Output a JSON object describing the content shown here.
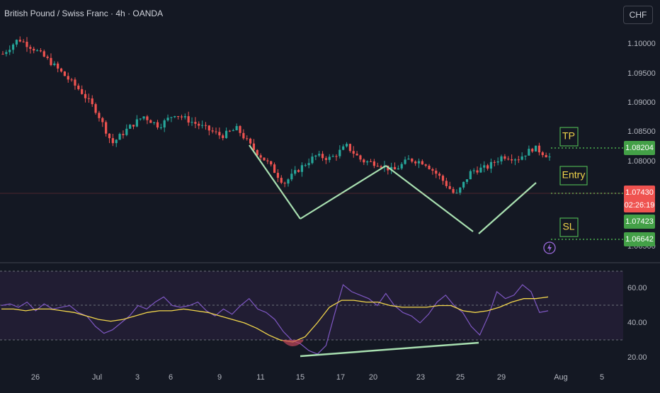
{
  "header": {
    "symbol_title": "British Pound / Swiss Franc · 4h · OANDA",
    "currency_button": "CHF"
  },
  "colors": {
    "background": "#141823",
    "bull_candle": "#26a69a",
    "bear_candle": "#ef5350",
    "pattern_line": "#a8dfb0",
    "level_line": "#4caf50",
    "level_text": "#f2d64b",
    "rsi_line": "#7e57c2",
    "rsi_ma": "#f2d64b",
    "rsi_band": "#2a2540"
  },
  "chart_data": [
    {
      "type": "candlestick",
      "name": "GBPCHF 4h price",
      "y_ticks": [
        "1.10000",
        "1.09500",
        "1.09000",
        "1.08500",
        "1.08000",
        "1.06500"
      ],
      "x_ticks": [
        "26",
        "Jul",
        "3",
        "6",
        "9",
        "11",
        "15",
        "17",
        "20",
        "23",
        "25",
        "29",
        "Aug",
        "5"
      ],
      "price_labels": [
        {
          "text": "1.08204",
          "kind": "tp"
        },
        {
          "text": "1.07430",
          "kind": "last"
        },
        {
          "text": "02:26:19",
          "kind": "countdown"
        },
        {
          "text": "1.07423",
          "kind": "entry"
        },
        {
          "text": "1.06642",
          "kind": "sl"
        }
      ],
      "levels": [
        {
          "label": "TP",
          "value": 1.08204
        },
        {
          "label": "Entry",
          "value": 1.07423
        },
        {
          "label": "SL",
          "value": 1.06642
        }
      ],
      "pattern_points": [
        {
          "x": "Jul 10",
          "y": 1.083
        },
        {
          "x": "Jul 15",
          "y": 1.072
        },
        {
          "x": "Jul 20",
          "y": 1.0795
        },
        {
          "x": "Jul 26",
          "y": 1.0685
        },
        {
          "x": "Jul 31",
          "y": 1.076
        }
      ],
      "key_path": [
        1.098,
        1.101,
        1.099,
        1.0965,
        1.0935,
        1.0905,
        1.0865,
        1.08,
        1.083,
        1.0855,
        1.0835,
        1.086,
        1.0845,
        1.083,
        1.0815,
        1.083,
        1.079,
        1.076,
        1.072,
        1.075,
        1.0775,
        1.077,
        1.0795,
        1.0765,
        1.076,
        1.0745,
        1.0768,
        1.0762,
        1.0732,
        1.0695,
        1.0745,
        1.0752,
        1.0775,
        1.077,
        1.0792,
        1.0773
      ]
    },
    {
      "type": "line",
      "name": "RSI",
      "y_ticks": [
        "60.00",
        "40.00",
        "20.00"
      ],
      "band": [
        30,
        70
      ],
      "divergence_line": {
        "from": {
          "x": "Jul 15",
          "y": 21
        },
        "to": {
          "x": "Jul 26",
          "y": 29
        }
      },
      "key_path": [
        50,
        51,
        49,
        52,
        47,
        51,
        48,
        49,
        50,
        46,
        44,
        38,
        34,
        36,
        40,
        44,
        50,
        48,
        52,
        55,
        50,
        49,
        50,
        52,
        47,
        44,
        48,
        45,
        50,
        54,
        48,
        46,
        42,
        35,
        30,
        28,
        24,
        22,
        27,
        45,
        62,
        58,
        56,
        54,
        50,
        57,
        50,
        46,
        44,
        40,
        45,
        52,
        56,
        50,
        46,
        38,
        33,
        44,
        58,
        54,
        56,
        62,
        58,
        46,
        47
      ],
      "ma_path": [
        48,
        48,
        47,
        48,
        48,
        47,
        46,
        44,
        42,
        41,
        42,
        44,
        46,
        47,
        47,
        48,
        47,
        46,
        44,
        42,
        40,
        37,
        33,
        30,
        29,
        32,
        40,
        49,
        53,
        53,
        52,
        52,
        50,
        49,
        49,
        49,
        50,
        50,
        47,
        46,
        47,
        49,
        52,
        54,
        54,
        55
      ]
    }
  ]
}
